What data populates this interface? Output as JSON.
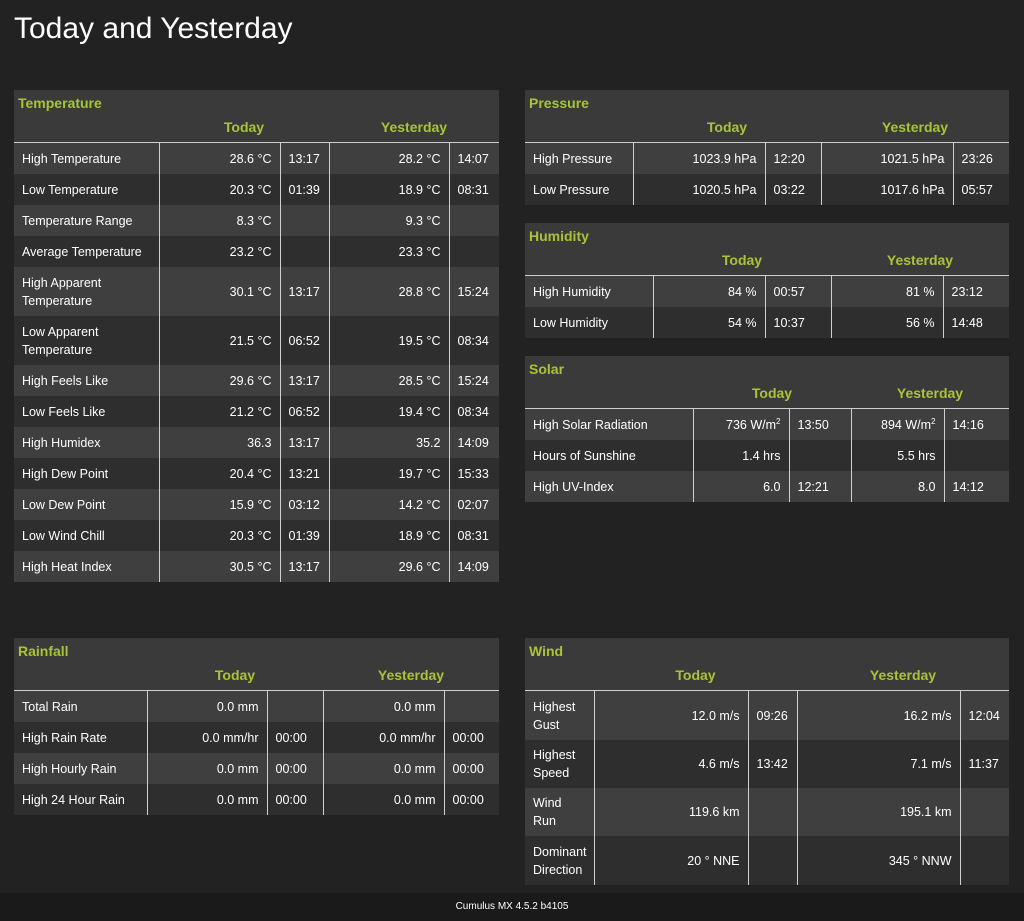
{
  "page_title": "Today and Yesterday",
  "headers": {
    "today": "Today",
    "yesterday": "Yesterday"
  },
  "temperature": {
    "title": "Temperature",
    "rows": [
      {
        "label": "High Temperature",
        "today": "28.6 °C",
        "today_time": "13:17",
        "yesterday": "28.2 °C",
        "yesterday_time": "14:07"
      },
      {
        "label": "Low Temperature",
        "today": "20.3 °C",
        "today_time": "01:39",
        "yesterday": "18.9 °C",
        "yesterday_time": "08:31"
      },
      {
        "label": "Temperature Range",
        "today": "8.3 °C",
        "today_time": "",
        "yesterday": "9.3 °C",
        "yesterday_time": ""
      },
      {
        "label": "Average Temperature",
        "today": "23.2 °C",
        "today_time": "",
        "yesterday": "23.3 °C",
        "yesterday_time": ""
      },
      {
        "label": "High Apparent Temperature",
        "today": "30.1 °C",
        "today_time": "13:17",
        "yesterday": "28.8 °C",
        "yesterday_time": "15:24"
      },
      {
        "label": "Low Apparent Temperature",
        "today": "21.5 °C",
        "today_time": "06:52",
        "yesterday": "19.5 °C",
        "yesterday_time": "08:34"
      },
      {
        "label": "High Feels Like",
        "today": "29.6 °C",
        "today_time": "13:17",
        "yesterday": "28.5 °C",
        "yesterday_time": "15:24"
      },
      {
        "label": "Low Feels Like",
        "today": "21.2 °C",
        "today_time": "06:52",
        "yesterday": "19.4 °C",
        "yesterday_time": "08:34"
      },
      {
        "label": "High Humidex",
        "today": "36.3",
        "today_time": "13:17",
        "yesterday": "35.2",
        "yesterday_time": "14:09"
      },
      {
        "label": "High Dew Point",
        "today": "20.4 °C",
        "today_time": "13:21",
        "yesterday": "19.7 °C",
        "yesterday_time": "15:33"
      },
      {
        "label": "Low Dew Point",
        "today": "15.9 °C",
        "today_time": "03:12",
        "yesterday": "14.2 °C",
        "yesterday_time": "02:07"
      },
      {
        "label": "Low Wind Chill",
        "today": "20.3 °C",
        "today_time": "01:39",
        "yesterday": "18.9 °C",
        "yesterday_time": "08:31"
      },
      {
        "label": "High Heat Index",
        "today": "30.5 °C",
        "today_time": "13:17",
        "yesterday": "29.6 °C",
        "yesterday_time": "14:09"
      }
    ]
  },
  "pressure": {
    "title": "Pressure",
    "rows": [
      {
        "label": "High Pressure",
        "today": "1023.9 hPa",
        "today_time": "12:20",
        "yesterday": "1021.5 hPa",
        "yesterday_time": "23:26"
      },
      {
        "label": "Low Pressure",
        "today": "1020.5 hPa",
        "today_time": "03:22",
        "yesterday": "1017.6 hPa",
        "yesterday_time": "05:57"
      }
    ]
  },
  "humidity": {
    "title": "Humidity",
    "rows": [
      {
        "label": "High Humidity",
        "today": "84 %",
        "today_time": "00:57",
        "yesterday": "81 %",
        "yesterday_time": "23:12"
      },
      {
        "label": "Low Humidity",
        "today": "54 %",
        "today_time": "10:37",
        "yesterday": "56 %",
        "yesterday_time": "14:48"
      }
    ]
  },
  "solar": {
    "title": "Solar",
    "rows": [
      {
        "label": "High Solar Radiation",
        "today": "736 W/m",
        "today_sup": "2",
        "today_time": "13:50",
        "yesterday": "894 W/m",
        "yesterday_sup": "2",
        "yesterday_time": "14:16"
      },
      {
        "label": "Hours of Sunshine",
        "today": "1.4 hrs",
        "today_time": "",
        "yesterday": "5.5 hrs",
        "yesterday_time": ""
      },
      {
        "label": "High UV-Index",
        "today": "6.0",
        "today_time": "12:21",
        "yesterday": "8.0",
        "yesterday_time": "14:12"
      }
    ]
  },
  "rainfall": {
    "title": "Rainfall",
    "rows": [
      {
        "label": "Total Rain",
        "today": "0.0 mm",
        "today_time": "",
        "yesterday": "0.0 mm",
        "yesterday_time": ""
      },
      {
        "label": "High Rain Rate",
        "today": "0.0 mm/hr",
        "today_time": "00:00",
        "yesterday": "0.0 mm/hr",
        "yesterday_time": "00:00"
      },
      {
        "label": "High Hourly Rain",
        "today": "0.0 mm",
        "today_time": "00:00",
        "yesterday": "0.0 mm",
        "yesterday_time": "00:00"
      },
      {
        "label": "High 24 Hour Rain",
        "today": "0.0 mm",
        "today_time": "00:00",
        "yesterday": "0.0 mm",
        "yesterday_time": "00:00"
      }
    ]
  },
  "wind": {
    "title": "Wind",
    "rows": [
      {
        "label": "Highest Gust",
        "today": "12.0 m/s",
        "today_time": "09:26",
        "yesterday": "16.2 m/s",
        "yesterday_time": "12:04"
      },
      {
        "label": "Highest Speed",
        "today": "4.6 m/s",
        "today_time": "13:42",
        "yesterday": "7.1 m/s",
        "yesterday_time": "11:37"
      },
      {
        "label": "Wind Run",
        "today": "119.6 km",
        "today_time": "",
        "yesterday": "195.1 km",
        "yesterday_time": ""
      },
      {
        "label": "Dominant Direction",
        "today": "20 ° NNE",
        "today_time": "",
        "yesterday": "345 ° NNW",
        "yesterday_time": ""
      }
    ]
  },
  "footer": "Cumulus MX 4.5.2 b4105",
  "colors": {
    "background": "#222222",
    "accent": "#a8c437",
    "row_light": "#3f3f3f",
    "row_dark": "#2e2e2e"
  }
}
